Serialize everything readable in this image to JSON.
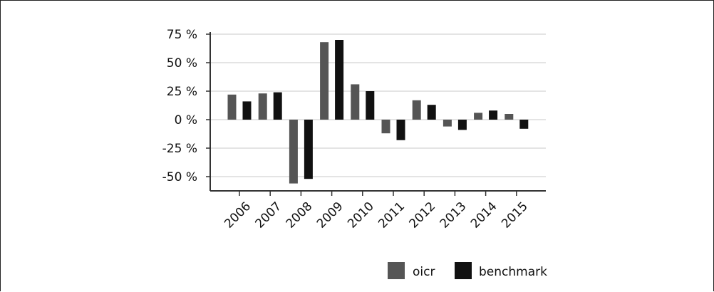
{
  "chart_data": {
    "type": "bar",
    "title": "",
    "xlabel": "",
    "ylabel": "",
    "categories": [
      "2006",
      "2007",
      "2008",
      "2009",
      "2010",
      "2011",
      "2012",
      "2013",
      "2014",
      "2015"
    ],
    "series": [
      {
        "name": "oicr",
        "color": "#555555",
        "values": [
          22,
          23,
          -56,
          68,
          31,
          -12,
          17,
          -6,
          6,
          5
        ]
      },
      {
        "name": "benchmark",
        "color": "#111111",
        "values": [
          16,
          24,
          -52,
          70,
          25,
          -18,
          13,
          -9,
          8,
          -8
        ]
      }
    ],
    "y_ticks": [
      75,
      50,
      25,
      0,
      -25,
      -50
    ],
    "y_tick_labels": [
      "75 %",
      "50 %",
      "25 %",
      "0 %",
      "-25 %",
      "-50 %"
    ],
    "ylim": [
      -62,
      77
    ],
    "grid": true,
    "legend": "bottom-right"
  }
}
